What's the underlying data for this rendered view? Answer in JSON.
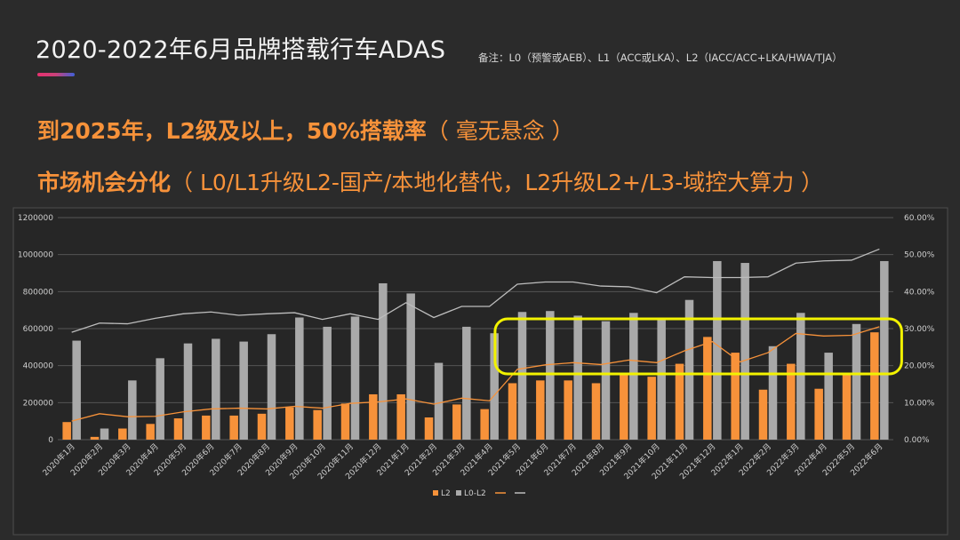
{
  "slide": {
    "title": "2020-2022年6月品牌搭载行车ADAS",
    "note": "备注：L0（预警或AEB）、L1（ACC或LKA）、L2（IACC/ACC+LKA/HWA/TJA）",
    "headline1_main": "到2025年，L2级及以上，50%搭载率",
    "headline1_paren": "（ 毫无悬念 ）",
    "headline2_main": "市场机会分化",
    "headline2_paren": "（ L0/L1升级L2-国产/本地化替代，L2升级L2+/L3-域控大算力 ）",
    "accent_colors": [
      "#e8316f",
      "#3f5fd8"
    ],
    "highlight_color": "#f2f200"
  },
  "chart_data": {
    "type": "bar",
    "categories": [
      "2020年1月",
      "2020年2月",
      "2020年3月",
      "2020年4月",
      "2020年5月",
      "2020年6月",
      "2020年7月",
      "2020年8月",
      "2020年9月",
      "2020年10月",
      "2020年11月",
      "2020年12月",
      "2021年1月",
      "2021年2月",
      "2021年3月",
      "2021年4月",
      "2021年5月",
      "2021年6月",
      "2021年7月",
      "2021年8月",
      "2021年9月",
      "2021年10月",
      "2021年11月",
      "2021年12月",
      "2022年1月",
      "2022年2月",
      "2022年3月",
      "2022年4月",
      "2022年5月",
      "2022年6月"
    ],
    "series": [
      {
        "name": "L2",
        "kind": "bar",
        "axis": "left",
        "color": "#f7923a",
        "values": [
          95000,
          15000,
          60000,
          85000,
          115000,
          130000,
          130000,
          140000,
          175000,
          160000,
          195000,
          245000,
          245000,
          120000,
          190000,
          165000,
          305000,
          320000,
          320000,
          305000,
          350000,
          340000,
          410000,
          555000,
          470000,
          270000,
          410000,
          275000,
          355000,
          580000
        ]
      },
      {
        "name": "L0-L2",
        "kind": "bar",
        "axis": "left",
        "color": "#a9a9a9",
        "values": [
          535000,
          60000,
          320000,
          440000,
          520000,
          545000,
          530000,
          570000,
          660000,
          610000,
          665000,
          845000,
          790000,
          415000,
          610000,
          575000,
          690000,
          695000,
          670000,
          640000,
          685000,
          660000,
          755000,
          965000,
          955000,
          505000,
          685000,
          470000,
          625000,
          965000
        ]
      },
      {
        "name": "",
        "kind": "line",
        "axis": "right",
        "color": "#f7923a",
        "values": [
          5.0,
          7.0,
          6.2,
          6.3,
          7.5,
          8.3,
          8.5,
          8.3,
          9.0,
          8.5,
          9.8,
          10.2,
          11.0,
          9.6,
          11.2,
          10.5,
          19.0,
          20.2,
          20.8,
          20.3,
          21.5,
          20.8,
          24.0,
          26.5,
          21.0,
          23.5,
          28.7,
          28.0,
          28.2,
          30.5
        ]
      },
      {
        "name": "",
        "kind": "line",
        "axis": "right",
        "color": "#bdbdbd",
        "values": [
          29.0,
          31.5,
          31.3,
          32.8,
          34.0,
          34.5,
          33.6,
          34.0,
          34.3,
          32.5,
          34.0,
          32.5,
          37.0,
          33.0,
          36.0,
          36.0,
          42.0,
          42.6,
          42.6,
          41.5,
          41.3,
          39.7,
          44.0,
          43.8,
          43.8,
          44.0,
          47.7,
          48.3,
          48.5,
          51.5
        ]
      }
    ],
    "y_left": {
      "min": 0,
      "max": 1200000,
      "ticks": [
        "0",
        "200000",
        "400000",
        "600000",
        "800000",
        "1000000",
        "1200000"
      ]
    },
    "y_right": {
      "min": 0,
      "max": 60,
      "ticks": [
        "0.00%",
        "10.00%",
        "20.00%",
        "30.00%",
        "40.00%",
        "50.00%",
        "60.00%"
      ]
    },
    "legend": [
      "L2",
      "L0-L2",
      "",
      ""
    ],
    "legend_position": "bottom",
    "grid": true,
    "highlight_range": [
      "2021年5月",
      "2022年6月"
    ]
  }
}
